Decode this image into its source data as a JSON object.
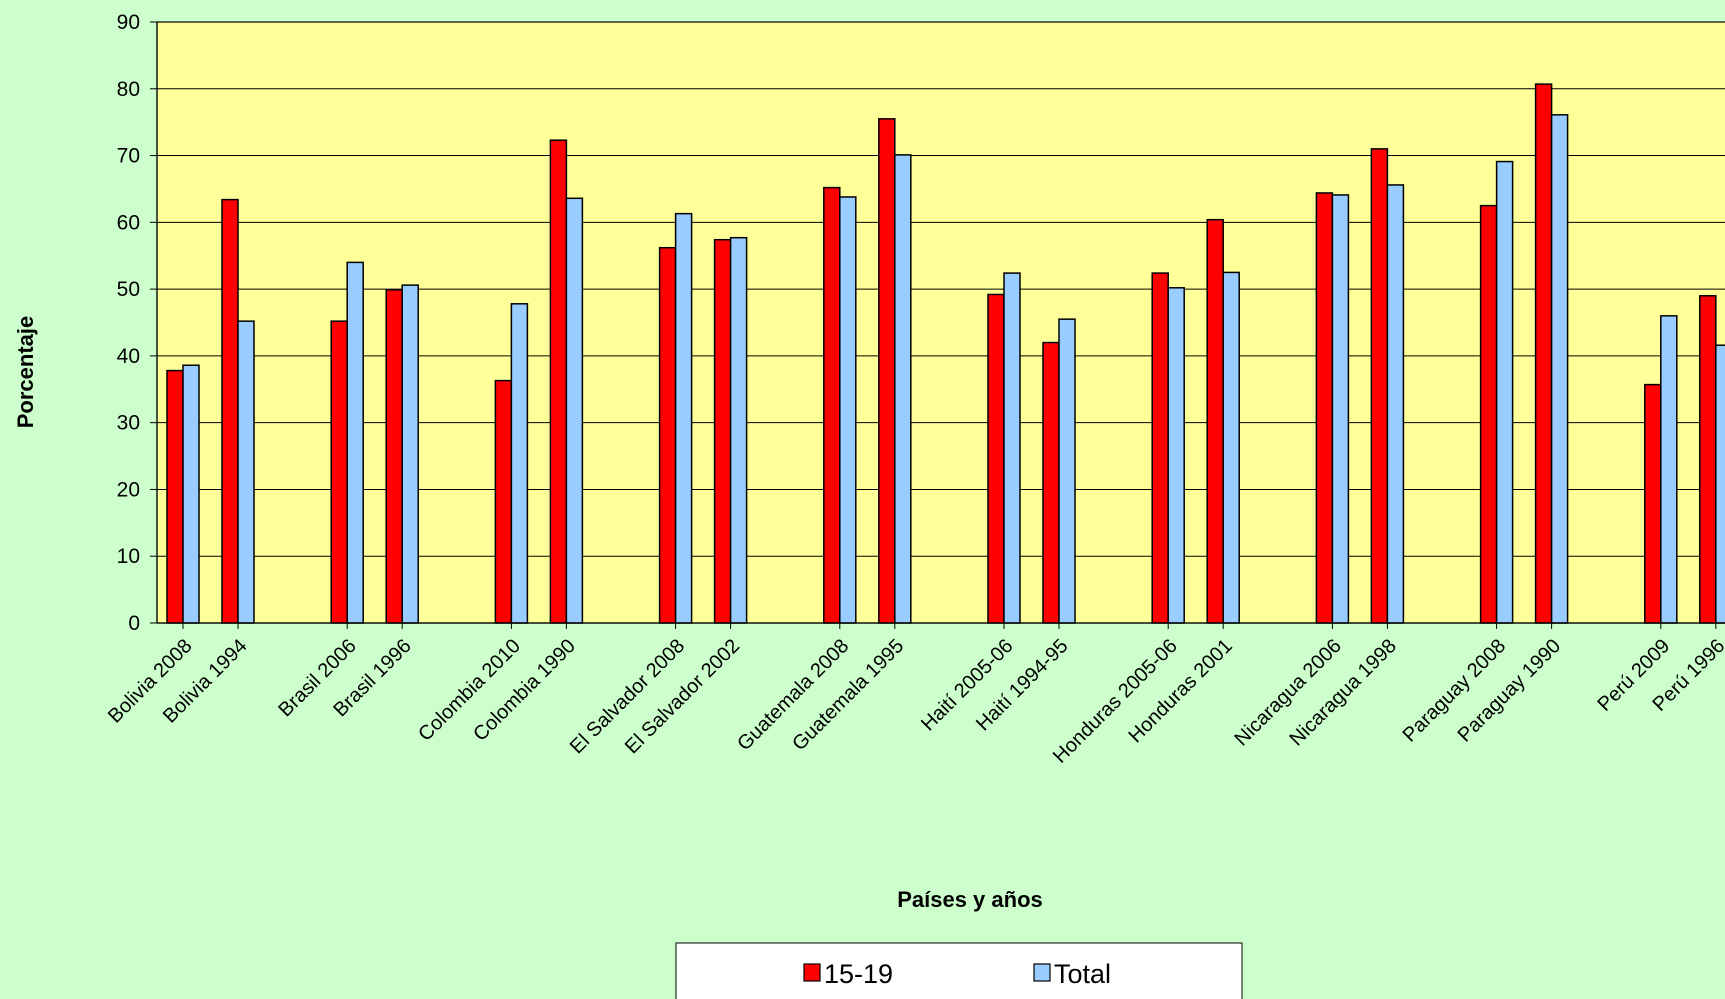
{
  "chart_data": {
    "type": "bar",
    "title": "",
    "xlabel": "Países y años",
    "ylabel": "Porcentaje",
    "ylim": [
      0,
      90
    ],
    "yticks": [
      0,
      10,
      20,
      30,
      40,
      50,
      60,
      70,
      80,
      90
    ],
    "grid": true,
    "legend_position": "bottom",
    "colors": {
      "plot_background": "#ffff99",
      "page_background": "#ccffcc",
      "series_1": "#ff0000",
      "series_2": "#99ccff"
    },
    "categories": [
      "Bolivia 2008",
      "Bolivia 1994",
      "Brasil 2006",
      "Brasil 1996",
      "Colombia 2010",
      "Colombia 1990",
      "El Salvador 2008",
      "El Salvador 2002",
      "Guatemala 2008",
      "Guatemala 1995",
      "Haití 2005-06",
      "Haití 1994-95",
      "Honduras 2005-06",
      "Honduras 2001",
      "Nicaragua 2006",
      "Nicaragua 1998",
      "Paraguay 2008",
      "Paraguay 1990",
      "Perú 2009",
      "Perú 1996"
    ],
    "series": [
      {
        "name": "15-19",
        "values": [
          37.8,
          63.4,
          45.2,
          49.9,
          36.3,
          72.3,
          56.2,
          57.4,
          65.2,
          75.5,
          49.2,
          42.0,
          52.4,
          60.4,
          64.4,
          71.0,
          62.5,
          80.7,
          35.7,
          49.0
        ]
      },
      {
        "name": "Total",
        "values": [
          38.6,
          45.2,
          54.0,
          50.6,
          47.8,
          63.6,
          61.3,
          57.7,
          63.8,
          70.1,
          52.4,
          45.5,
          50.2,
          52.5,
          64.1,
          65.6,
          69.1,
          76.1,
          46.0,
          41.6
        ]
      }
    ]
  }
}
